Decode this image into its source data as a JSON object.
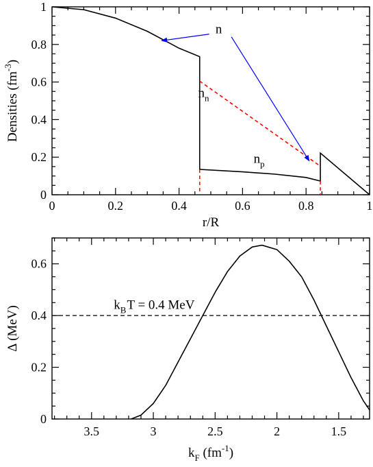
{
  "colors": {
    "axis": "#000000",
    "total": "#000000",
    "neutron": "#ff0000",
    "arrow": "#0000ff",
    "threshold": "#000000",
    "gap": "#000000"
  },
  "chart_data": [
    {
      "type": "line",
      "xlabel": "r/R",
      "ylabel": {
        "main": "Densities (fm",
        "sup": "-3",
        "tail": ")"
      },
      "xlim": [
        0,
        1
      ],
      "ylim": [
        0,
        1
      ],
      "xticks": [
        0,
        0.2,
        0.4,
        0.6,
        0.8,
        1
      ],
      "xtick_labels": [
        "0",
        "0.2",
        "0.4",
        "0.6",
        "0.8",
        "1"
      ],
      "yticks": [
        0,
        0.2,
        0.4,
        0.6,
        0.8,
        1
      ],
      "ytick_labels": [
        "0",
        "0.2",
        "0.4",
        "0.6",
        "0.8",
        "1"
      ],
      "series": [
        {
          "key": "total",
          "style": "solid",
          "color": "#000000",
          "x": [
            0,
            0.1,
            0.2,
            0.3,
            0.4,
            0.465,
            0.465,
            0.6,
            0.7,
            0.8,
            0.845,
            0.845,
            1.0
          ],
          "y": [
            1.0,
            0.985,
            0.94,
            0.87,
            0.78,
            0.735,
            0.135,
            0.122,
            0.11,
            0.092,
            0.073,
            0.222,
            0.0
          ]
        },
        {
          "key": "neutron",
          "style": "dashed",
          "color": "#ff0000",
          "x": [
            0.465,
            0.845
          ],
          "y": [
            0.605,
            0.152
          ]
        },
        {
          "key": "drop-lines",
          "style": "dashed",
          "color": "#ff0000",
          "segments": [
            [
              [
                0.465,
                0.135
              ],
              [
                0.465,
                0.0
              ]
            ],
            [
              [
                0.845,
                0.073
              ],
              [
                0.845,
                0.0
              ]
            ]
          ]
        }
      ],
      "annotations": {
        "n": {
          "text": "n",
          "x": 0.525,
          "y": 0.86
        },
        "nn": {
          "base": "n",
          "sub": "n",
          "x": 0.46,
          "y": 0.52
        },
        "np": {
          "base": "n",
          "sub": "p",
          "x": 0.635,
          "y": 0.17
        },
        "arrows": [
          {
            "from": [
              0.495,
              0.855
            ],
            "to": [
              0.345,
              0.82
            ]
          },
          {
            "from": [
              0.565,
              0.84
            ],
            "to": [
              0.81,
              0.18
            ]
          }
        ]
      }
    },
    {
      "type": "line",
      "xlabel": {
        "main": "k",
        "sub": "F",
        "mid": " (fm",
        "sup": "-1",
        "tail": ")"
      },
      "ylabel": "Δ (MeV)",
      "xlim": [
        3.82,
        1.25
      ],
      "ylim": [
        0,
        0.7
      ],
      "xticks": [
        3.5,
        3,
        2.5,
        2,
        1.5
      ],
      "xtick_labels": [
        "3.5",
        "3",
        "2.5",
        "2",
        "1.5"
      ],
      "yticks": [
        0,
        0.2,
        0.4,
        0.6
      ],
      "ytick_labels": [
        "0",
        "0.2",
        "0.4",
        "0.6"
      ],
      "gap_curve": {
        "x": [
          3.18,
          3.1,
          3.0,
          2.9,
          2.8,
          2.7,
          2.6,
          2.5,
          2.4,
          2.3,
          2.2,
          2.12,
          2.0,
          1.9,
          1.8,
          1.7,
          1.6,
          1.5,
          1.4,
          1.3,
          1.25
        ],
        "y": [
          0.0,
          0.015,
          0.06,
          0.13,
          0.22,
          0.31,
          0.4,
          0.49,
          0.57,
          0.63,
          0.665,
          0.672,
          0.655,
          0.61,
          0.55,
          0.46,
          0.36,
          0.26,
          0.16,
          0.07,
          0.035
        ]
      },
      "threshold": {
        "y": 0.4,
        "label_k": "k",
        "label_sub": "B",
        "label_rest": "T = 0.4 MeV",
        "label_x": 3.32,
        "label_y": 0.425
      }
    }
  ]
}
